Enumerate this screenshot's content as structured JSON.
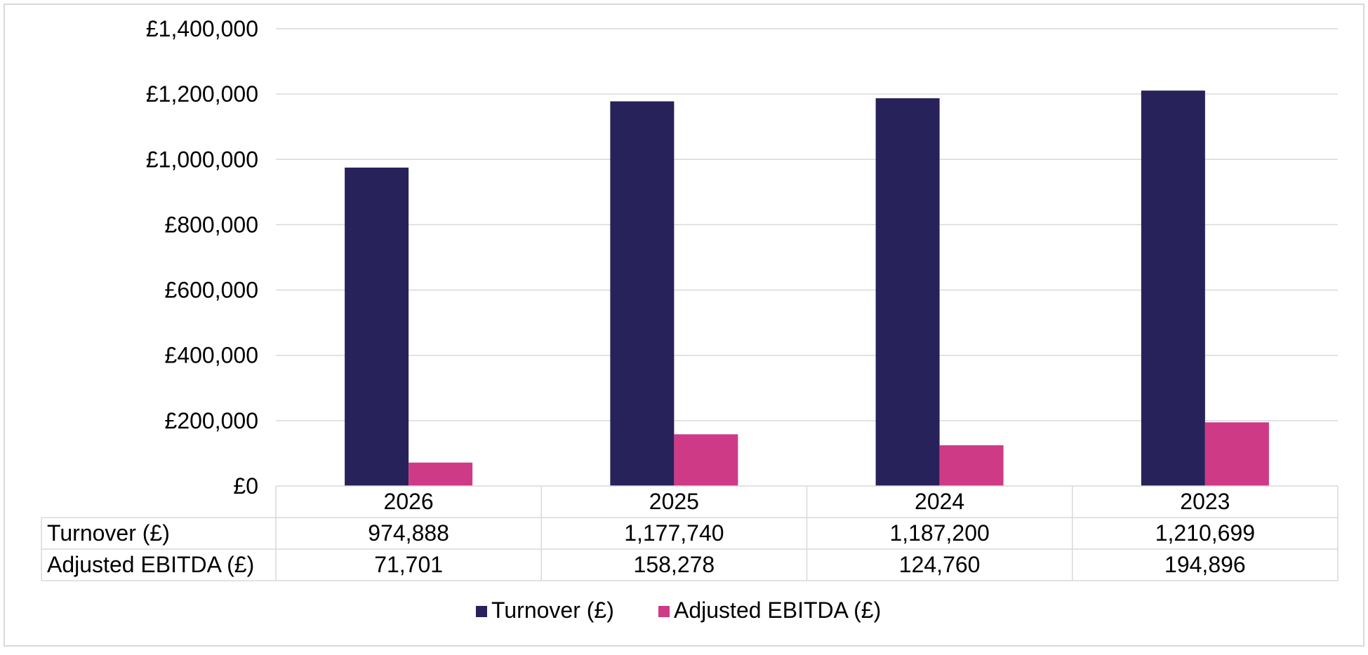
{
  "chart_data": {
    "type": "bar",
    "categories": [
      "2026",
      "2025",
      "2024",
      "2023"
    ],
    "series": [
      {
        "name": "Turnover (£)",
        "values": [
          974888,
          1177740,
          1187200,
          1210699
        ],
        "display": [
          "974,888",
          "1,177,740",
          "1,187,200",
          "1,210,699"
        ],
        "color": "#27225a"
      },
      {
        "name": "Adjusted EBITDA (£)",
        "values": [
          71701,
          158278,
          124760,
          194896
        ],
        "display": [
          "71,701",
          "158,278",
          "124,760",
          "194,896"
        ],
        "color": "#cf3a87"
      }
    ],
    "ylim": [
      0,
      1400000
    ],
    "yticks": [
      0,
      200000,
      400000,
      600000,
      800000,
      1000000,
      1200000,
      1400000
    ],
    "ytick_labels": [
      "£0",
      "£200,000",
      "£400,000",
      "£600,000",
      "£800,000",
      "£1,000,000",
      "£1,200,000",
      "£1,400,000"
    ],
    "grid": true,
    "data_table": true,
    "legend": "bottom"
  }
}
